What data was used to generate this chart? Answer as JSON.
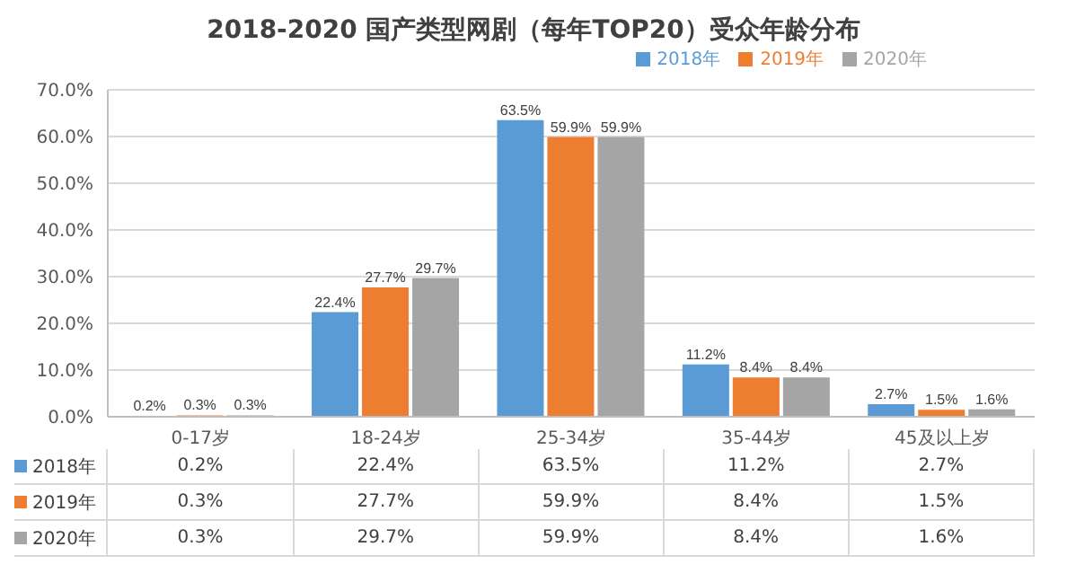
{
  "chart_data": {
    "type": "bar",
    "title": "2018-2020 国产类型网剧（每年TOP20）受众年龄分布",
    "categories": [
      "0-17岁",
      "18-24岁",
      "25-34岁",
      "35-44岁",
      "45及以上岁"
    ],
    "series": [
      {
        "name": "2018年",
        "color": "#5b9bd5",
        "values": [
          0.2,
          22.4,
          63.5,
          11.2,
          2.7
        ],
        "value_labels": [
          "0.2%",
          "22.4%",
          "63.5%",
          "11.2%",
          "2.7%"
        ]
      },
      {
        "name": "2019年",
        "color": "#ed7d31",
        "values": [
          0.3,
          27.7,
          59.9,
          8.4,
          1.5
        ],
        "value_labels": [
          "0.3%",
          "27.7%",
          "59.9%",
          "8.4%",
          "1.5%"
        ]
      },
      {
        "name": "2020年",
        "color": "#a5a5a5",
        "values": [
          0.3,
          29.7,
          59.9,
          8.4,
          1.6
        ],
        "value_labels": [
          "0.3%",
          "29.7%",
          "59.9%",
          "8.4%",
          "1.6%"
        ]
      }
    ],
    "ylim": [
      0,
      70
    ],
    "yticks": [
      {
        "value": 0,
        "label": "0.0%"
      },
      {
        "value": 10,
        "label": "10.0%"
      },
      {
        "value": 20,
        "label": "20.0%"
      },
      {
        "value": 30,
        "label": "30.0%"
      },
      {
        "value": 40,
        "label": "40.0%"
      },
      {
        "value": 50,
        "label": "50.0%"
      },
      {
        "value": 60,
        "label": "60.0%"
      },
      {
        "value": 70,
        "label": "70.0%"
      }
    ],
    "grid": "y",
    "legend": "top right"
  }
}
